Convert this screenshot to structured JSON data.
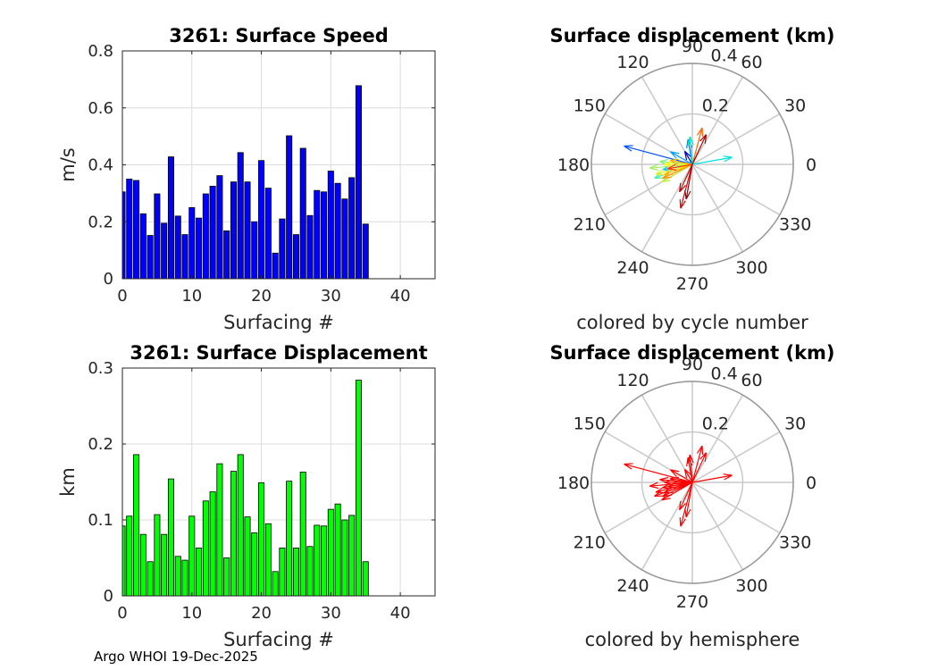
{
  "footer": "Argo WHOI 19-Dec-2025",
  "chart_data": [
    {
      "id": "speed",
      "type": "bar",
      "title": "3261: Surface Speed",
      "xlabel": "Surfacing #",
      "ylabel": "m/s",
      "xlim": [
        0,
        45
      ],
      "ylim": [
        0,
        0.8
      ],
      "xticks": [
        "0",
        "10",
        "20",
        "30",
        "40"
      ],
      "yticks": [
        "0",
        "0.2",
        "0.4",
        "0.6",
        "0.8"
      ],
      "grid": true,
      "bar_color": "#0000ff",
      "x": [
        0,
        1,
        2,
        3,
        4,
        5,
        6,
        7,
        8,
        9,
        10,
        11,
        12,
        13,
        14,
        15,
        16,
        17,
        18,
        19,
        20,
        21,
        22,
        23,
        24,
        25,
        26,
        27,
        28,
        29,
        30,
        31,
        32,
        33,
        34,
        35
      ],
      "values": [
        0.305,
        0.35,
        0.345,
        0.228,
        0.152,
        0.298,
        0.195,
        0.428,
        0.22,
        0.155,
        0.25,
        0.213,
        0.298,
        0.325,
        0.362,
        0.168,
        0.34,
        0.443,
        0.34,
        0.2,
        0.415,
        0.318,
        0.09,
        0.21,
        0.502,
        0.155,
        0.458,
        0.222,
        0.31,
        0.305,
        0.378,
        0.335,
        0.28,
        0.355,
        0.678,
        0.192
      ]
    },
    {
      "id": "displacement",
      "type": "bar",
      "title": "3261: Surface Displacement",
      "xlabel": "Surfacing #",
      "ylabel": "km",
      "xlim": [
        0,
        45
      ],
      "ylim": [
        0,
        0.3
      ],
      "xticks": [
        "0",
        "10",
        "20",
        "30",
        "40"
      ],
      "yticks": [
        "0",
        "0.1",
        "0.2",
        "0.3"
      ],
      "grid": true,
      "bar_color": "#00ff00",
      "x": [
        0,
        1,
        2,
        3,
        4,
        5,
        6,
        7,
        8,
        9,
        10,
        11,
        12,
        13,
        14,
        15,
        16,
        17,
        18,
        19,
        20,
        21,
        22,
        23,
        24,
        25,
        26,
        27,
        28,
        29,
        30,
        31,
        32,
        33,
        34,
        35
      ],
      "values": [
        0.092,
        0.105,
        0.186,
        0.081,
        0.045,
        0.107,
        0.081,
        0.154,
        0.052,
        0.047,
        0.105,
        0.063,
        0.125,
        0.137,
        0.174,
        0.05,
        0.164,
        0.186,
        0.104,
        0.083,
        0.149,
        0.095,
        0.032,
        0.063,
        0.151,
        0.063,
        0.163,
        0.065,
        0.093,
        0.092,
        0.114,
        0.121,
        0.1,
        0.106,
        0.284,
        0.045
      ]
    },
    {
      "id": "polar-cycle",
      "type": "polar-vectors",
      "title": "Surface displacement (km)",
      "caption": "colored by cycle number",
      "rmax": 0.4,
      "rticks": [
        "0.2",
        "0.4"
      ],
      "angle_labels": [
        "0",
        "30",
        "60",
        "90",
        "120",
        "150",
        "180",
        "210",
        "240",
        "270",
        "300",
        "330"
      ],
      "vectors": [
        {
          "angle": 120,
          "r": 0.06,
          "color": "#0000cc"
        },
        {
          "angle": 165,
          "r": 0.28,
          "color": "#0050ff"
        },
        {
          "angle": 100,
          "r": 0.1,
          "color": "#0080ff"
        },
        {
          "angle": 150,
          "r": 0.1,
          "color": "#00a0ff"
        },
        {
          "angle": 190,
          "r": 0.12,
          "color": "#00c8ff"
        },
        {
          "angle": 10,
          "r": 0.16,
          "color": "#00e0e0"
        },
        {
          "angle": 95,
          "r": 0.11,
          "color": "#00e8c8"
        },
        {
          "angle": 200,
          "r": 0.16,
          "color": "#40f0a0"
        },
        {
          "angle": 175,
          "r": 0.13,
          "color": "#80f080"
        },
        {
          "angle": 185,
          "r": 0.17,
          "color": "#a0f060"
        },
        {
          "angle": 210,
          "r": 0.14,
          "color": "#c0f040"
        },
        {
          "angle": 195,
          "r": 0.15,
          "color": "#e0f020"
        },
        {
          "angle": 180,
          "r": 0.11,
          "color": "#ffff00"
        },
        {
          "angle": 200,
          "r": 0.12,
          "color": "#ffd000"
        },
        {
          "angle": 170,
          "r": 0.09,
          "color": "#ffb000"
        },
        {
          "angle": 205,
          "r": 0.13,
          "color": "#ff9000"
        },
        {
          "angle": 75,
          "r": 0.15,
          "color": "#ff6000"
        },
        {
          "angle": 190,
          "r": 0.1,
          "color": "#ff3000"
        },
        {
          "angle": 255,
          "r": 0.18,
          "color": "#e00000"
        },
        {
          "angle": 245,
          "r": 0.12,
          "color": "#c00000"
        },
        {
          "angle": 65,
          "r": 0.13,
          "color": "#a00000"
        },
        {
          "angle": 260,
          "r": 0.14,
          "color": "#900000"
        }
      ]
    },
    {
      "id": "polar-hemisphere",
      "type": "polar-vectors",
      "title": "Surface displacement (km)",
      "caption": "colored by hemisphere",
      "rmax": 0.4,
      "rticks": [
        "0.2",
        "0.4"
      ],
      "angle_labels": [
        "0",
        "30",
        "60",
        "90",
        "120",
        "150",
        "180",
        "210",
        "240",
        "270",
        "300",
        "330"
      ],
      "vectors": [
        {
          "angle": 120,
          "r": 0.06,
          "color": "#ff0000"
        },
        {
          "angle": 165,
          "r": 0.28,
          "color": "#ff0000"
        },
        {
          "angle": 100,
          "r": 0.1,
          "color": "#ff0000"
        },
        {
          "angle": 150,
          "r": 0.1,
          "color": "#ff0000"
        },
        {
          "angle": 190,
          "r": 0.12,
          "color": "#ff0000"
        },
        {
          "angle": 10,
          "r": 0.16,
          "color": "#ff0000"
        },
        {
          "angle": 95,
          "r": 0.11,
          "color": "#ff0000"
        },
        {
          "angle": 200,
          "r": 0.16,
          "color": "#ff0000"
        },
        {
          "angle": 175,
          "r": 0.13,
          "color": "#ff0000"
        },
        {
          "angle": 185,
          "r": 0.17,
          "color": "#ff0000"
        },
        {
          "angle": 210,
          "r": 0.14,
          "color": "#ff0000"
        },
        {
          "angle": 195,
          "r": 0.15,
          "color": "#ff0000"
        },
        {
          "angle": 180,
          "r": 0.11,
          "color": "#ff0000"
        },
        {
          "angle": 200,
          "r": 0.12,
          "color": "#ff0000"
        },
        {
          "angle": 170,
          "r": 0.09,
          "color": "#ff0000"
        },
        {
          "angle": 205,
          "r": 0.13,
          "color": "#ff0000"
        },
        {
          "angle": 75,
          "r": 0.15,
          "color": "#ff0000"
        },
        {
          "angle": 190,
          "r": 0.1,
          "color": "#ff0000"
        },
        {
          "angle": 255,
          "r": 0.18,
          "color": "#ff0000"
        },
        {
          "angle": 245,
          "r": 0.12,
          "color": "#ff0000"
        },
        {
          "angle": 65,
          "r": 0.13,
          "color": "#ff0000"
        },
        {
          "angle": 260,
          "r": 0.14,
          "color": "#ff0000"
        }
      ]
    }
  ]
}
